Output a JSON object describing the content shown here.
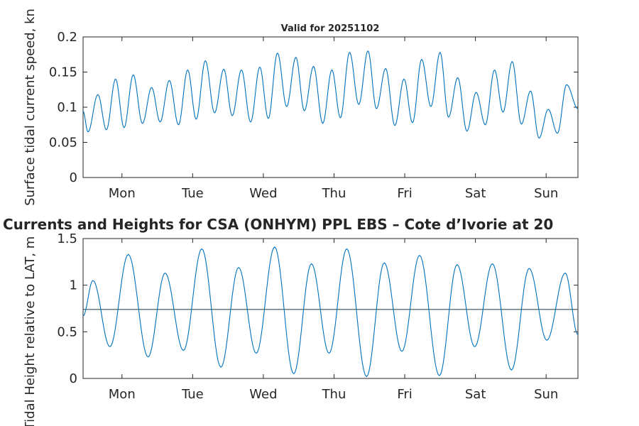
{
  "figure": {
    "suptitle": "Currents and Heights for CSA (ONHYM) PPL EBS  – Cote d’Ivorie at 20"
  },
  "chart_data": [
    {
      "type": "line",
      "title": "Valid for 20251102",
      "xlabel": "",
      "ylabel": "Surface tidal current speed, kn",
      "xlim": [
        0,
        7
      ],
      "ylim": [
        0,
        0.2
      ],
      "yticks": [
        0,
        0.05,
        0.1,
        0.15,
        0.2
      ],
      "ytick_labels": [
        "0",
        "0.05",
        "0.1",
        "0.15",
        "0.2"
      ],
      "xticks": [
        0.55,
        1.55,
        2.55,
        3.55,
        4.55,
        5.55,
        6.55
      ],
      "xtick_labels": [
        "Mon",
        "Tue",
        "Wed",
        "Thu",
        "Fri",
        "Sat",
        "Sun"
      ],
      "series": [
        {
          "name": "current speed",
          "color": "#0072BD",
          "points": [
            [
              0.0,
              0.094
            ],
            [
              0.07,
              0.065
            ],
            [
              0.21,
              0.118
            ],
            [
              0.33,
              0.068
            ],
            [
              0.46,
              0.14
            ],
            [
              0.58,
              0.071
            ],
            [
              0.71,
              0.146
            ],
            [
              0.84,
              0.077
            ],
            [
              0.97,
              0.128
            ],
            [
              1.09,
              0.079
            ],
            [
              1.22,
              0.138
            ],
            [
              1.35,
              0.075
            ],
            [
              1.48,
              0.153
            ],
            [
              1.6,
              0.083
            ],
            [
              1.73,
              0.166
            ],
            [
              1.86,
              0.092
            ],
            [
              1.99,
              0.154
            ],
            [
              2.11,
              0.088
            ],
            [
              2.24,
              0.153
            ],
            [
              2.37,
              0.079
            ],
            [
              2.5,
              0.157
            ],
            [
              2.62,
              0.084
            ],
            [
              2.75,
              0.177
            ],
            [
              2.88,
              0.101
            ],
            [
              3.01,
              0.171
            ],
            [
              3.13,
              0.095
            ],
            [
              3.26,
              0.158
            ],
            [
              3.39,
              0.077
            ],
            [
              3.52,
              0.153
            ],
            [
              3.64,
              0.085
            ],
            [
              3.77,
              0.178
            ],
            [
              3.9,
              0.104
            ],
            [
              4.03,
              0.18
            ],
            [
              4.15,
              0.098
            ],
            [
              4.28,
              0.155
            ],
            [
              4.41,
              0.074
            ],
            [
              4.54,
              0.14
            ],
            [
              4.66,
              0.078
            ],
            [
              4.79,
              0.168
            ],
            [
              4.92,
              0.101
            ],
            [
              5.05,
              0.178
            ],
            [
              5.17,
              0.086
            ],
            [
              5.3,
              0.142
            ],
            [
              5.43,
              0.066
            ],
            [
              5.56,
              0.121
            ],
            [
              5.69,
              0.075
            ],
            [
              5.82,
              0.153
            ],
            [
              5.94,
              0.093
            ],
            [
              6.07,
              0.165
            ],
            [
              6.2,
              0.076
            ],
            [
              6.33,
              0.123
            ],
            [
              6.45,
              0.056
            ],
            [
              6.58,
              0.097
            ],
            [
              6.71,
              0.063
            ],
            [
              6.84,
              0.132
            ],
            [
              7.0,
              0.098
            ]
          ]
        }
      ]
    },
    {
      "type": "line",
      "title": "",
      "xlabel": "",
      "ylabel": "Tidal Height relative to LAT, m",
      "xlim": [
        0,
        7
      ],
      "ylim": [
        0,
        1.5
      ],
      "yticks": [
        0,
        0.5,
        1,
        1.5
      ],
      "ytick_labels": [
        "0",
        "0.5",
        "1",
        "1.5"
      ],
      "xticks": [
        0.55,
        1.55,
        2.55,
        3.55,
        4.55,
        5.55,
        6.55
      ],
      "xtick_labels": [
        "Mon",
        "Tue",
        "Wed",
        "Thu",
        "Fri",
        "Sat",
        "Sun"
      ],
      "reference_level": 0.74,
      "series": [
        {
          "name": "tidal height",
          "color": "#0072BD",
          "points": [
            [
              0.0,
              0.67
            ],
            [
              0.14,
              1.05
            ],
            [
              0.38,
              0.34
            ],
            [
              0.64,
              1.33
            ],
            [
              0.92,
              0.23
            ],
            [
              1.16,
              1.13
            ],
            [
              1.42,
              0.3
            ],
            [
              1.68,
              1.39
            ],
            [
              1.95,
              0.12
            ],
            [
              2.2,
              1.19
            ],
            [
              2.45,
              0.27
            ],
            [
              2.71,
              1.41
            ],
            [
              2.98,
              0.05
            ],
            [
              3.23,
              1.23
            ],
            [
              3.48,
              0.27
            ],
            [
              3.73,
              1.39
            ],
            [
              4.01,
              0.02
            ],
            [
              4.26,
              1.24
            ],
            [
              4.51,
              0.29
            ],
            [
              4.76,
              1.32
            ],
            [
              5.04,
              0.03
            ],
            [
              5.29,
              1.22
            ],
            [
              5.54,
              0.34
            ],
            [
              5.79,
              1.23
            ],
            [
              6.06,
              0.09
            ],
            [
              6.31,
              1.18
            ],
            [
              6.56,
              0.41
            ],
            [
              6.82,
              1.13
            ],
            [
              7.0,
              0.47
            ]
          ]
        }
      ]
    }
  ]
}
